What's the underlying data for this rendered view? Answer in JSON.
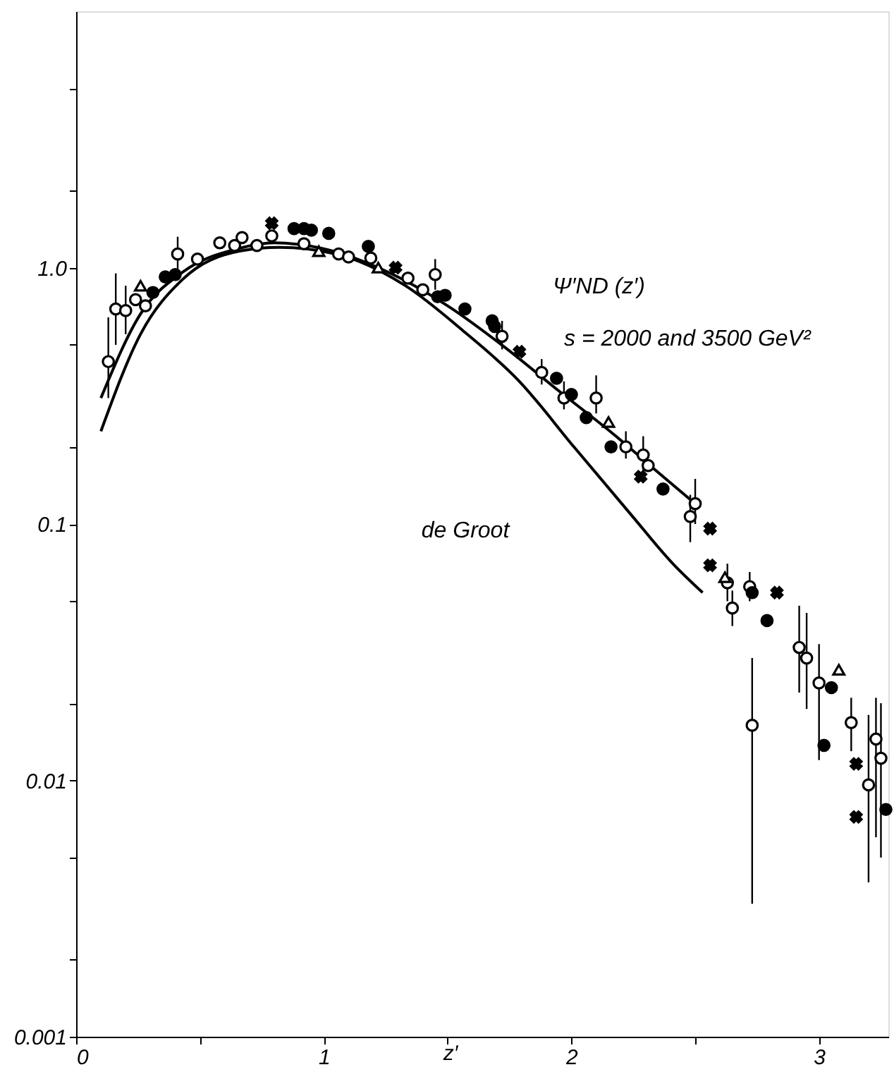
{
  "chart_data": {
    "type": "scatter",
    "xlabel": "z′",
    "xlim": [
      0,
      3.28
    ],
    "xticks": [
      {
        "value": 0,
        "label": "0"
      },
      {
        "value": 0.5,
        "label": null
      },
      1,
      {
        "value": 1.5,
        "label": null
      },
      2,
      {
        "value": 2.5,
        "label": null
      },
      3
    ],
    "ylim": [
      0.001,
      10
    ],
    "yticks": [
      0.001,
      {
        "value": 0.002,
        "label": null
      },
      {
        "value": 0.005,
        "label": null
      },
      0.01,
      {
        "value": 0.02,
        "label": null
      },
      {
        "value": 0.05,
        "label": null
      },
      0.1,
      {
        "value": 0.2,
        "label": null
      },
      {
        "value": 0.5,
        "label": null
      },
      {
        "value": 1,
        "label": "1.0"
      },
      {
        "value": 2,
        "label": null
      },
      {
        "value": 5,
        "label": null
      }
    ],
    "log": "y",
    "grid": false,
    "series": [
      {
        "type": "line",
        "color": "#000000",
        "marker": "none",
        "line_style": "solid",
        "x": [
          0.1,
          0.26,
          0.43,
          0.66,
          0.8,
          0.99,
          1.28,
          1.5,
          1.73,
          1.95,
          2.18,
          2.35,
          2.5
        ],
        "values": [
          0.31,
          0.66,
          0.96,
          1.19,
          1.25,
          1.19,
          0.94,
          0.71,
          0.49,
          0.33,
          0.22,
          0.159,
          0.12
        ]
      },
      {
        "type": "line",
        "color": "#000000",
        "marker": "none",
        "line_style": "solid",
        "x": [
          0.1,
          0.26,
          0.43,
          0.66,
          0.82,
          1.05,
          1.33,
          1.56,
          1.79,
          2.01,
          2.24,
          2.41,
          2.53
        ],
        "values": [
          0.23,
          0.55,
          0.9,
          1.16,
          1.2,
          1.13,
          0.85,
          0.57,
          0.36,
          0.2,
          0.109,
          0.07,
          0.054
        ]
      },
      {
        "color": "#ffffff",
        "marker": "circle",
        "x": [
          0.13,
          0.16,
          0.2,
          0.24,
          0.28,
          0.41,
          0.49,
          0.58,
          0.64,
          0.67,
          0.73,
          0.79,
          0.92,
          1.06,
          1.1,
          1.19,
          1.34,
          1.4,
          1.45,
          1.72,
          1.88,
          1.97,
          2.1,
          2.22,
          2.29,
          2.31,
          2.48,
          2.5,
          2.63,
          2.65,
          2.72,
          2.73,
          2.92,
          2.95,
          3.0,
          3.13,
          3.2,
          3.23,
          3.25
        ],
        "values": [
          0.43,
          0.69,
          0.68,
          0.75,
          0.71,
          1.13,
          1.08,
          1.25,
          1.22,
          1.31,
          1.22,
          1.33,
          1.24,
          1.13,
          1.1,
          1.09,
          0.91,
          0.82,
          0.94,
          0.54,
          0.39,
          0.31,
          0.31,
          0.2,
          0.186,
          0.169,
          0.107,
          0.12,
          0.059,
          0.047,
          0.057,
          0.0164,
          0.033,
          0.03,
          0.024,
          0.0168,
          0.0096,
          0.0145,
          0.0122
        ],
        "errors": [
          [
            0.31,
            0.64
          ],
          [
            0.5,
            0.95
          ],
          [
            0.55,
            0.85
          ],
          null,
          null,
          [
            0.98,
            1.32
          ],
          null,
          null,
          null,
          null,
          null,
          null,
          null,
          null,
          null,
          null,
          null,
          null,
          [
            0.82,
            1.08
          ],
          [
            0.48,
            0.62
          ],
          [
            0.35,
            0.44
          ],
          [
            0.28,
            0.36
          ],
          [
            0.27,
            0.38
          ],
          [
            0.18,
            0.23
          ],
          [
            0.16,
            0.22
          ],
          null,
          [
            0.085,
            0.13
          ],
          [
            0.1,
            0.15
          ],
          [
            0.05,
            0.07
          ],
          [
            0.04,
            0.055
          ],
          [
            0.05,
            0.065
          ],
          [
            0.0033,
            0.03
          ],
          [
            0.022,
            0.048
          ],
          [
            0.019,
            0.045
          ],
          [
            0.012,
            0.034
          ],
          [
            0.013,
            0.021
          ],
          [
            0.004,
            0.018
          ],
          [
            0.006,
            0.021
          ],
          [
            0.005,
            0.02
          ]
        ]
      },
      {
        "color": "#000000",
        "marker": "circle",
        "x": [
          0.31,
          0.36,
          0.4,
          0.88,
          0.92,
          0.95,
          1.02,
          1.18,
          1.46,
          1.49,
          1.57,
          1.68,
          1.69,
          1.94,
          2.0,
          2.06,
          2.16,
          2.37,
          2.73,
          2.79,
          3.02,
          3.05,
          3.27
        ],
        "values": [
          0.8,
          0.92,
          0.94,
          1.42,
          1.42,
          1.4,
          1.36,
          1.21,
          0.77,
          0.78,
          0.69,
          0.62,
          0.59,
          0.37,
          0.32,
          0.26,
          0.2,
          0.137,
          0.054,
          0.042,
          0.0137,
          0.023,
          0.0077
        ]
      },
      {
        "color": "#ffffff",
        "marker": "triangle",
        "x": [
          0.26,
          0.98,
          1.22,
          2.15,
          2.62,
          3.08
        ],
        "values": [
          0.85,
          1.16,
          1.0,
          0.25,
          0.062,
          0.027
        ]
      },
      {
        "color": "#000000",
        "marker": "cross",
        "x": [
          0.79,
          1.29,
          1.79,
          2.28,
          2.56,
          2.56,
          2.83,
          3.15,
          3.15
        ],
        "values": [
          1.49,
          1.0,
          0.47,
          0.153,
          0.096,
          0.069,
          0.054,
          0.0116,
          0.0072
        ]
      }
    ],
    "annotations": [
      "Ψ′ND (z′)",
      "s = 2000 and 3500 GeV²",
      "de Groot"
    ]
  }
}
